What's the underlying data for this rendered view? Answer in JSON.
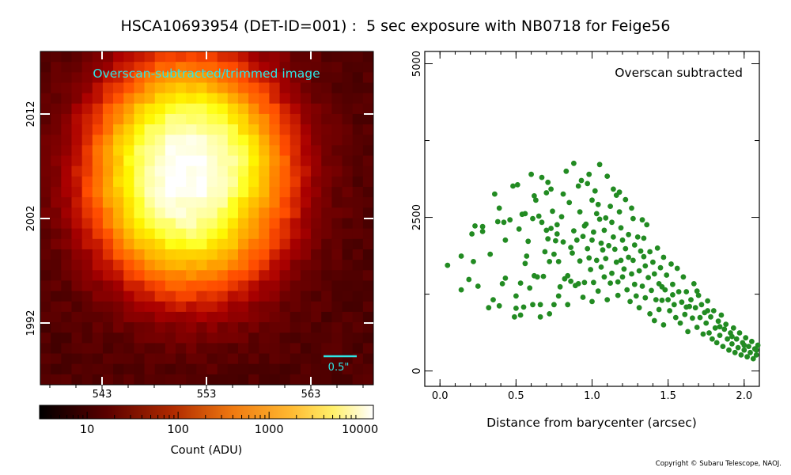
{
  "title": "HSCA10693954 (DET-ID=001) :  5 sec exposure with NB0718 for Feige56",
  "copyright": "Copyright © Subaru Telescope, NAOJ.",
  "colors": {
    "scatter_points": "#228b22",
    "image_annotation": "#2ee6e6",
    "axes": "#000000",
    "tick_marks_on_image": "#ffffff"
  },
  "chart_data": [
    {
      "type": "heatmap",
      "panel_label": "Overscan-subtracted/trimmed image",
      "colormap": "afmhot (black-red-orange-yellow-white)",
      "x_ticks": [
        "543",
        "553",
        "563"
      ],
      "y_ticks": [
        "1992",
        "2002",
        "2012"
      ],
      "scale_bar_label": "0.5\"",
      "colorbar": {
        "scale": "log",
        "label": "Count (ADU)",
        "tick_labels": [
          "10",
          "100",
          "1000",
          "10000"
        ],
        "range": [
          3,
          14000
        ]
      },
      "grid": false
    },
    {
      "type": "scatter",
      "panel_label": "Overscan subtracted",
      "xlabel": "Distance from barycenter (arcsec)",
      "ylabel": "",
      "xlim": [
        -0.1,
        2.1
      ],
      "ylim": [
        -250,
        5200
      ],
      "x_ticks": [
        "0.0",
        "0.5",
        "1.0",
        "1.5",
        "2.0"
      ],
      "y_ticks": [
        "0",
        "2500",
        "5000"
      ],
      "legend": "none",
      "grid": false,
      "points": [
        [
          0.05,
          1720
        ],
        [
          0.14,
          1320
        ],
        [
          0.14,
          1870
        ],
        [
          0.19,
          1490
        ],
        [
          0.21,
          2230
        ],
        [
          0.22,
          1780
        ],
        [
          0.23,
          2360
        ],
        [
          0.25,
          1380
        ],
        [
          0.28,
          2350
        ],
        [
          0.28,
          2270
        ],
        [
          0.32,
          1030
        ],
        [
          0.33,
          1900
        ],
        [
          0.35,
          1160
        ],
        [
          0.36,
          2880
        ],
        [
          0.38,
          2430
        ],
        [
          0.39,
          2650
        ],
        [
          0.39,
          1060
        ],
        [
          0.41,
          1420
        ],
        [
          0.42,
          2420
        ],
        [
          0.43,
          2130
        ],
        [
          0.43,
          1510
        ],
        [
          0.46,
          2460
        ],
        [
          0.48,
          3010
        ],
        [
          0.49,
          880
        ],
        [
          0.5,
          1020
        ],
        [
          0.5,
          1220
        ],
        [
          0.51,
          3030
        ],
        [
          0.52,
          2310
        ],
        [
          0.53,
          910
        ],
        [
          0.53,
          1430
        ],
        [
          0.54,
          2550
        ],
        [
          0.55,
          1040
        ],
        [
          0.56,
          1750
        ],
        [
          0.56,
          2560
        ],
        [
          0.57,
          1870
        ],
        [
          0.58,
          2110
        ],
        [
          0.59,
          1350
        ],
        [
          0.6,
          3200
        ],
        [
          0.61,
          1080
        ],
        [
          0.62,
          1550
        ],
        [
          0.62,
          2850
        ],
        [
          0.63,
          2780
        ],
        [
          0.64,
          1530
        ],
        [
          0.65,
          2520
        ],
        [
          0.66,
          880
        ],
        [
          0.66,
          1080
        ],
        [
          0.67,
          3150
        ],
        [
          0.67,
          2420
        ],
        [
          0.68,
          1540
        ],
        [
          0.69,
          1940
        ],
        [
          0.7,
          2290
        ],
        [
          0.7,
          2900
        ],
        [
          0.71,
          2150
        ],
        [
          0.71,
          3070
        ],
        [
          0.72,
          1780
        ],
        [
          0.72,
          930
        ],
        [
          0.73,
          2320
        ],
        [
          0.73,
          2960
        ],
        [
          0.74,
          2600
        ],
        [
          0.75,
          1080
        ],
        [
          0.75,
          1900
        ],
        [
          0.76,
          2120
        ],
        [
          0.77,
          2380
        ],
        [
          0.78,
          1220
        ],
        [
          0.78,
          1780
        ],
        [
          0.79,
          1370
        ],
        [
          0.8,
          2510
        ],
        [
          0.81,
          2100
        ],
        [
          0.81,
          2880
        ],
        [
          0.82,
          1500
        ],
        [
          0.83,
          3250
        ],
        [
          0.84,
          1080
        ],
        [
          0.84,
          1550
        ],
        [
          0.85,
          2740
        ],
        [
          0.86,
          1460
        ],
        [
          0.86,
          2010
        ],
        [
          0.87,
          1920
        ],
        [
          0.88,
          3380
        ],
        [
          0.88,
          2280
        ],
        [
          0.89,
          1390
        ],
        [
          0.9,
          2130
        ],
        [
          0.91,
          1420
        ],
        [
          0.92,
          2590
        ],
        [
          0.92,
          1790
        ],
        [
          0.93,
          3100
        ],
        [
          0.94,
          1200
        ],
        [
          0.94,
          2190
        ],
        [
          0.95,
          2360
        ],
        [
          0.95,
          1440
        ],
        [
          0.96,
          2390
        ],
        [
          0.97,
          1990
        ],
        [
          0.97,
          3050
        ],
        [
          0.98,
          1840
        ],
        [
          0.98,
          3200
        ],
        [
          0.99,
          1650
        ],
        [
          1.0,
          2130
        ],
        [
          1.0,
          2780
        ],
        [
          1.0,
          1130
        ],
        [
          1.01,
          1440
        ],
        [
          1.01,
          2260
        ],
        [
          1.02,
          2930
        ],
        [
          1.03,
          1800
        ],
        [
          1.03,
          2560
        ],
        [
          1.04,
          1300
        ],
        [
          1.05,
          2470
        ],
        [
          1.05,
          3360
        ],
        [
          1.06,
          1690
        ],
        [
          1.06,
          2080
        ],
        [
          1.07,
          1970
        ],
        [
          1.08,
          2290
        ],
        [
          1.08,
          1530
        ],
        [
          1.09,
          2490
        ],
        [
          1.09,
          1830
        ],
        [
          1.1,
          3170
        ],
        [
          1.1,
          1160
        ],
        [
          1.11,
          2040
        ],
        [
          1.12,
          1430
        ],
        [
          1.12,
          2680
        ],
        [
          1.13,
          1590
        ],
        [
          1.13,
          2420
        ],
        [
          1.14,
          2180
        ],
        [
          1.15,
          1980
        ],
        [
          1.16,
          2860
        ],
        [
          1.16,
          1770
        ],
        [
          1.17,
          1450
        ],
        [
          1.17,
          1230
        ],
        [
          1.18,
          2590
        ],
        [
          1.18,
          2910
        ],
        [
          1.19,
          1800
        ],
        [
          1.2,
          2130
        ],
        [
          1.2,
          1530
        ],
        [
          1.21,
          1660
        ],
        [
          1.22,
          1990
        ],
        [
          1.22,
          2790
        ],
        [
          1.23,
          1320
        ],
        [
          1.24,
          1850
        ],
        [
          1.24,
          2220
        ],
        [
          1.25,
          1130
        ],
        [
          1.26,
          1580
        ],
        [
          1.26,
          2650
        ],
        [
          1.27,
          1800
        ],
        [
          1.28,
          2050
        ],
        [
          1.28,
          1410
        ],
        [
          1.29,
          1220
        ],
        [
          1.3,
          2180
        ],
        [
          1.31,
          1630
        ],
        [
          1.31,
          1030
        ],
        [
          1.32,
          1950
        ],
        [
          1.33,
          2460
        ],
        [
          1.33,
          1380
        ],
        [
          1.34,
          2160
        ],
        [
          1.35,
          1710
        ],
        [
          1.35,
          1190
        ],
        [
          1.36,
          2380
        ],
        [
          1.37,
          1520
        ],
        [
          1.38,
          1940
        ],
        [
          1.38,
          930
        ],
        [
          1.39,
          1310
        ],
        [
          1.4,
          1770
        ],
        [
          1.41,
          1580
        ],
        [
          1.41,
          820
        ],
        [
          1.42,
          1160
        ],
        [
          1.43,
          2000
        ],
        [
          1.44,
          1420
        ],
        [
          1.44,
          1000
        ],
        [
          1.45,
          1680
        ],
        [
          1.46,
          1150
        ],
        [
          1.47,
          1850
        ],
        [
          1.47,
          750
        ],
        [
          1.48,
          1320
        ],
        [
          1.49,
          1560
        ],
        [
          1.5,
          1160
        ],
        [
          1.51,
          980
        ],
        [
          1.52,
          1740
        ],
        [
          1.53,
          1410
        ],
        [
          1.54,
          1080
        ],
        [
          1.55,
          870
        ],
        [
          1.56,
          1670
        ],
        [
          1.57,
          1290
        ],
        [
          1.58,
          780
        ],
        [
          1.59,
          1120
        ],
        [
          1.6,
          1530
        ],
        [
          1.61,
          920
        ],
        [
          1.62,
          1290
        ],
        [
          1.63,
          640
        ],
        [
          1.64,
          1050
        ],
        [
          1.65,
          1160
        ],
        [
          1.66,
          860
        ],
        [
          1.67,
          1420
        ],
        [
          1.68,
          1030
        ],
        [
          1.69,
          710
        ],
        [
          1.7,
          1230
        ],
        [
          1.71,
          870
        ],
        [
          1.72,
          1080
        ],
        [
          1.73,
          600
        ],
        [
          1.74,
          950
        ],
        [
          1.75,
          780
        ],
        [
          1.76,
          1140
        ],
        [
          1.77,
          620
        ],
        [
          1.78,
          880
        ],
        [
          1.79,
          520
        ],
        [
          1.8,
          980
        ],
        [
          1.81,
          700
        ],
        [
          1.82,
          460
        ],
        [
          1.83,
          810
        ],
        [
          1.84,
          580
        ],
        [
          1.85,
          910
        ],
        [
          1.86,
          400
        ],
        [
          1.87,
          680
        ],
        [
          1.88,
          760
        ],
        [
          1.89,
          520
        ],
        [
          1.9,
          340
        ],
        [
          1.91,
          620
        ],
        [
          1.92,
          440
        ],
        [
          1.93,
          700
        ],
        [
          1.94,
          300
        ],
        [
          1.95,
          520
        ],
        [
          1.96,
          380
        ],
        [
          1.97,
          620
        ],
        [
          1.98,
          260
        ],
        [
          1.99,
          460
        ],
        [
          2.0,
          340
        ],
        [
          2.01,
          540
        ],
        [
          2.02,
          230
        ],
        [
          2.03,
          400
        ],
        [
          2.04,
          300
        ],
        [
          2.05,
          480
        ],
        [
          2.06,
          200
        ],
        [
          2.07,
          360
        ],
        [
          2.08,
          260
        ],
        [
          2.09,
          420
        ],
        [
          0.61,
          2480
        ],
        [
          0.77,
          2230
        ],
        [
          0.91,
          3010
        ],
        [
          1.04,
          2710
        ],
        [
          1.14,
          2960
        ],
        [
          1.19,
          2330
        ],
        [
          1.27,
          2480
        ],
        [
          1.34,
          1860
        ],
        [
          1.46,
          1370
        ],
        [
          1.53,
          1240
        ],
        [
          1.62,
          1040
        ],
        [
          1.69,
          1300
        ],
        [
          1.76,
          980
        ],
        [
          1.84,
          720
        ],
        [
          1.92,
          560
        ],
        [
          2.0,
          420
        ],
        [
          2.08,
          340
        ]
      ]
    }
  ]
}
